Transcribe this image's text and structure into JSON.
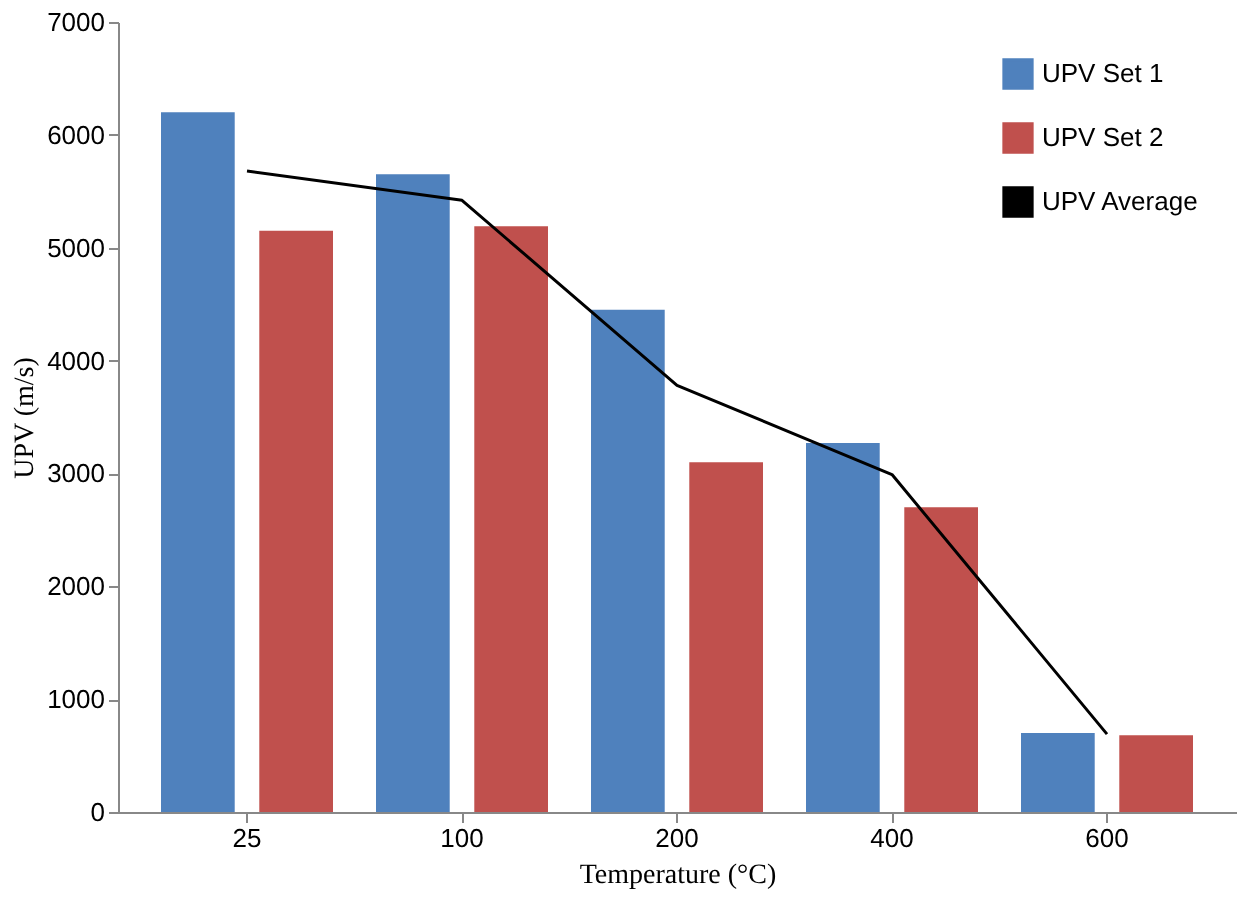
{
  "chart_data": {
    "type": "bar",
    "xlabel": "Temperature (°C)",
    "ylabel": "UPV (m/s)",
    "categories": [
      "25",
      "100",
      "200",
      "400",
      "600"
    ],
    "series": [
      {
        "name": "UPV Set 1",
        "color": "#4f81bd",
        "values": [
          6200,
          5650,
          4450,
          3270,
          700
        ]
      },
      {
        "name": "UPV Set 2",
        "color": "#c0504d",
        "values": [
          5150,
          5190,
          3100,
          2700,
          680
        ]
      },
      {
        "name": "UPV Average",
        "type": "line",
        "color": "#000000",
        "values": [
          5680,
          5420,
          3780,
          2990,
          690
        ]
      }
    ],
    "ylim": [
      0,
      7000
    ],
    "yticks": [
      0,
      1000,
      2000,
      3000,
      4000,
      5000,
      6000,
      7000
    ],
    "grid": false,
    "legend": "top right",
    "marker": "none"
  }
}
